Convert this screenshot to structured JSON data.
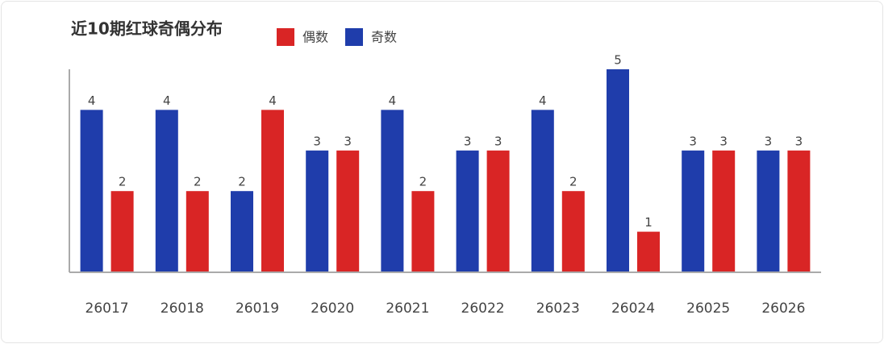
{
  "chart_data": {
    "type": "bar",
    "title": "近10期红球奇偶分布",
    "categories": [
      "26017",
      "26018",
      "26019",
      "26020",
      "26021",
      "26022",
      "26023",
      "26024",
      "26025",
      "26026"
    ],
    "series": [
      {
        "name": "奇数",
        "color": "#1f3dab",
        "values": [
          4,
          4,
          2,
          3,
          4,
          3,
          4,
          5,
          3,
          3
        ]
      },
      {
        "name": "偶数",
        "color": "#d92525",
        "values": [
          2,
          2,
          4,
          3,
          2,
          3,
          2,
          1,
          3,
          3
        ]
      }
    ],
    "ylim": [
      0,
      5
    ]
  }
}
